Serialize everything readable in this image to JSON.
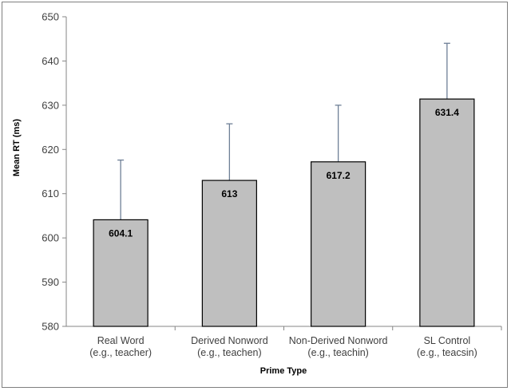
{
  "chart_data": {
    "type": "bar",
    "categories": [
      [
        "Real Word",
        "(e.g., teacher)"
      ],
      [
        "Derived Nonword",
        "(e.g., teachen)"
      ],
      [
        "Non-Derived Nonword",
        "(e.g., teachin)"
      ],
      [
        "SL Control",
        "(e.g., teacsin)"
      ]
    ],
    "values": [
      604.1,
      613,
      617.2,
      631.4
    ],
    "error_upper": [
      617.6,
      625.8,
      630.0,
      644.0
    ],
    "data_labels": [
      "604.1",
      "613",
      "617.2",
      "631.4"
    ],
    "xlabel": "Prime Type",
    "ylabel": "Mean RT (ms)",
    "ylim": [
      580,
      650
    ],
    "yticks": [
      580,
      590,
      600,
      610,
      620,
      630,
      640,
      650
    ],
    "grid": false,
    "legend": "none",
    "colors": {
      "bar_fill": "#bfbfbf",
      "bar_stroke": "#000000",
      "error_bar": "#6e7f96",
      "axis": "#868686"
    }
  }
}
